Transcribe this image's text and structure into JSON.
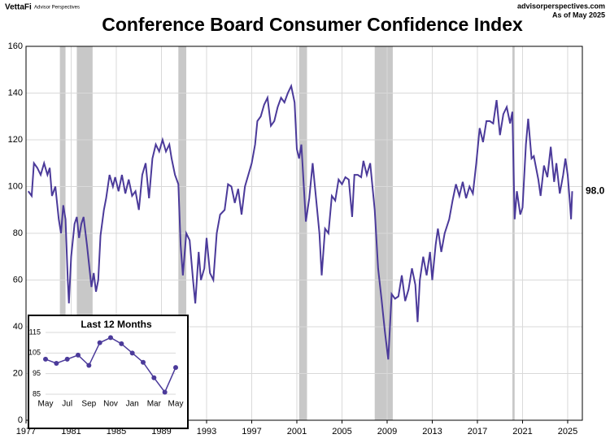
{
  "header": {
    "brand": "VettaFi",
    "brand_sub": "Advisor Perspectives",
    "site": "advisorperspectives.com",
    "as_of": "As of May 2025"
  },
  "chart_data": [
    {
      "type": "line",
      "title": "Conference Board Consumer Confidence Index",
      "xlim": [
        1977,
        2026.3
      ],
      "ylim": [
        0,
        160
      ],
      "xticks": [
        1977,
        1981,
        1985,
        1989,
        1993,
        1997,
        2001,
        2005,
        2009,
        2013,
        2017,
        2021,
        2025
      ],
      "yticks": [
        0,
        20,
        40,
        60,
        80,
        100,
        120,
        140,
        160
      ],
      "grid": true,
      "recessions": [
        [
          1980.0,
          1980.5
        ],
        [
          1981.5,
          1982.9
        ],
        [
          1990.5,
          1991.2
        ],
        [
          2001.2,
          2001.9
        ],
        [
          2007.9,
          2009.5
        ],
        [
          2020.1,
          2020.3
        ]
      ],
      "recession_color": "#c8c8c8",
      "end_label": {
        "value": 98,
        "label": "98.0"
      },
      "x": [
        1977.2,
        1977.5,
        1977.7,
        1978.0,
        1978.3,
        1978.6,
        1978.9,
        1979.1,
        1979.3,
        1979.6,
        1979.9,
        1980.1,
        1980.3,
        1980.5,
        1980.7,
        1980.8,
        1981.0,
        1981.3,
        1981.5,
        1981.7,
        1981.9,
        1982.1,
        1982.4,
        1982.6,
        1982.8,
        1983.0,
        1983.2,
        1983.4,
        1983.6,
        1983.9,
        1984.1,
        1984.4,
        1984.7,
        1984.9,
        1985.2,
        1985.5,
        1985.8,
        1986.1,
        1986.4,
        1986.7,
        1987.0,
        1987.3,
        1987.6,
        1987.9,
        1988.2,
        1988.5,
        1988.8,
        1989.1,
        1989.4,
        1989.7,
        1989.9,
        1990.2,
        1990.5,
        1990.7,
        1990.9,
        1991.2,
        1991.5,
        1991.8,
        1992.0,
        1992.3,
        1992.5,
        1992.8,
        1993.0,
        1993.3,
        1993.6,
        1993.9,
        1994.2,
        1994.6,
        1994.9,
        1995.2,
        1995.5,
        1995.8,
        1996.1,
        1996.4,
        1996.7,
        1997.0,
        1997.3,
        1997.5,
        1997.8,
        1998.1,
        1998.4,
        1998.7,
        1999.0,
        1999.3,
        1999.6,
        1999.9,
        2000.2,
        2000.5,
        2000.8,
        2001.0,
        2001.2,
        2001.4,
        2001.8,
        2002.1,
        2002.4,
        2002.7,
        2003.0,
        2003.2,
        2003.5,
        2003.8,
        2004.1,
        2004.4,
        2004.7,
        2005.0,
        2005.3,
        2005.6,
        2005.9,
        2006.1,
        2006.4,
        2006.7,
        2006.9,
        2007.2,
        2007.5,
        2007.9,
        2008.2,
        2008.5,
        2008.8,
        2009.1,
        2009.4,
        2009.7,
        2010.0,
        2010.3,
        2010.6,
        2010.9,
        2011.2,
        2011.5,
        2011.7,
        2011.9,
        2012.2,
        2012.5,
        2012.8,
        2013.0,
        2013.3,
        2013.5,
        2013.8,
        2014.1,
        2014.5,
        2014.8,
        2015.1,
        2015.4,
        2015.7,
        2016.0,
        2016.3,
        2016.6,
        2016.9,
        2017.2,
        2017.5,
        2017.8,
        2018.1,
        2018.4,
        2018.7,
        2019.0,
        2019.3,
        2019.6,
        2019.9,
        2020.1,
        2020.3,
        2020.5,
        2020.8,
        2021.0,
        2021.3,
        2021.5,
        2021.8,
        2022.0,
        2022.4,
        2022.6,
        2022.9,
        2023.2,
        2023.5,
        2023.8,
        2024.0,
        2024.3,
        2024.6,
        2024.8,
        2025.0,
        2025.2,
        2025.3,
        2025.4
      ],
      "series": [
        {
          "color": "#4b3a9a",
          "values": [
            98,
            96,
            110,
            108,
            105,
            110,
            105,
            108,
            96,
            100,
            86,
            80,
            92,
            86,
            60,
            50,
            70,
            84,
            87,
            78,
            84,
            87,
            75,
            66,
            57,
            63,
            55,
            60,
            79,
            90,
            95,
            105,
            100,
            104,
            98,
            105,
            97,
            103,
            96,
            98,
            90,
            105,
            110,
            95,
            112,
            118,
            115,
            120,
            115,
            118,
            112,
            105,
            101,
            75,
            62,
            80,
            77,
            60,
            50,
            72,
            60,
            65,
            78,
            63,
            60,
            80,
            88,
            90,
            101,
            100,
            93,
            99,
            88,
            100,
            105,
            110,
            118,
            128,
            130,
            135,
            138,
            126,
            128,
            134,
            138,
            136,
            140,
            143,
            136,
            116,
            112,
            118,
            85,
            95,
            110,
            95,
            80,
            62,
            82,
            80,
            96,
            94,
            103,
            101,
            104,
            103,
            87,
            105,
            105,
            104,
            111,
            105,
            110,
            90,
            65,
            52,
            38,
            26,
            54,
            52,
            53,
            62,
            51,
            56,
            65,
            58,
            42,
            60,
            70,
            62,
            72,
            60,
            75,
            82,
            72,
            80,
            86,
            94,
            101,
            96,
            102,
            95,
            100,
            97,
            110,
            125,
            119,
            128,
            128,
            127,
            137,
            122,
            131,
            134,
            127,
            132,
            86,
            98,
            88,
            91,
            118,
            129,
            112,
            113,
            103,
            96,
            109,
            104,
            117,
            102,
            110,
            97,
            105,
            112,
            105,
            93,
            86,
            98
          ]
        }
      ]
    },
    {
      "type": "line",
      "title": "Last 12 Months",
      "categories": [
        "May",
        null,
        "Jul",
        null,
        "Sep",
        null,
        "Nov",
        null,
        "Jan",
        null,
        "Mar",
        null,
        "May"
      ],
      "ylim": [
        85,
        115
      ],
      "yticks": [
        85,
        95,
        105,
        115
      ],
      "grid": true,
      "series": [
        {
          "color": "#4b3a9a",
          "values": [
            102,
            100,
            102,
            104,
            99,
            110,
            112.5,
            109.5,
            105,
            100.5,
            93,
            86,
            98
          ]
        }
      ]
    }
  ]
}
